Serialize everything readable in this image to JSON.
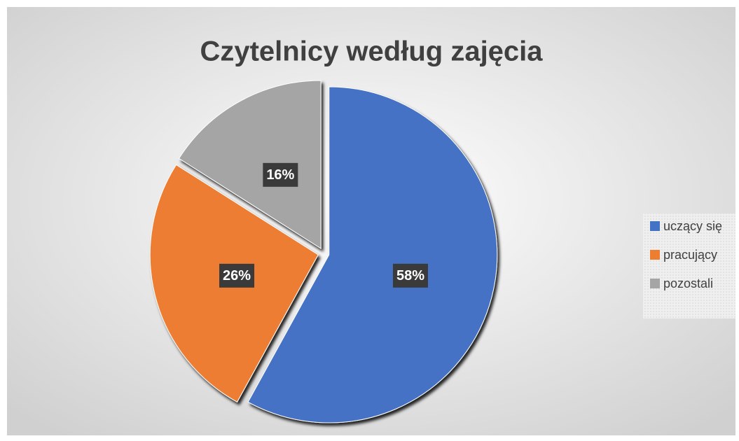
{
  "chart_data": {
    "type": "pie",
    "title": "Czytelnicy według zajęcia",
    "categories": [
      "uczący się",
      "pracujący",
      "pozostali"
    ],
    "values": [
      58,
      26,
      16
    ],
    "value_labels": [
      "58%",
      "26%",
      "16%"
    ],
    "colors": [
      "#4472c4",
      "#ed7d31",
      "#a5a5a5"
    ],
    "legend": "right"
  }
}
